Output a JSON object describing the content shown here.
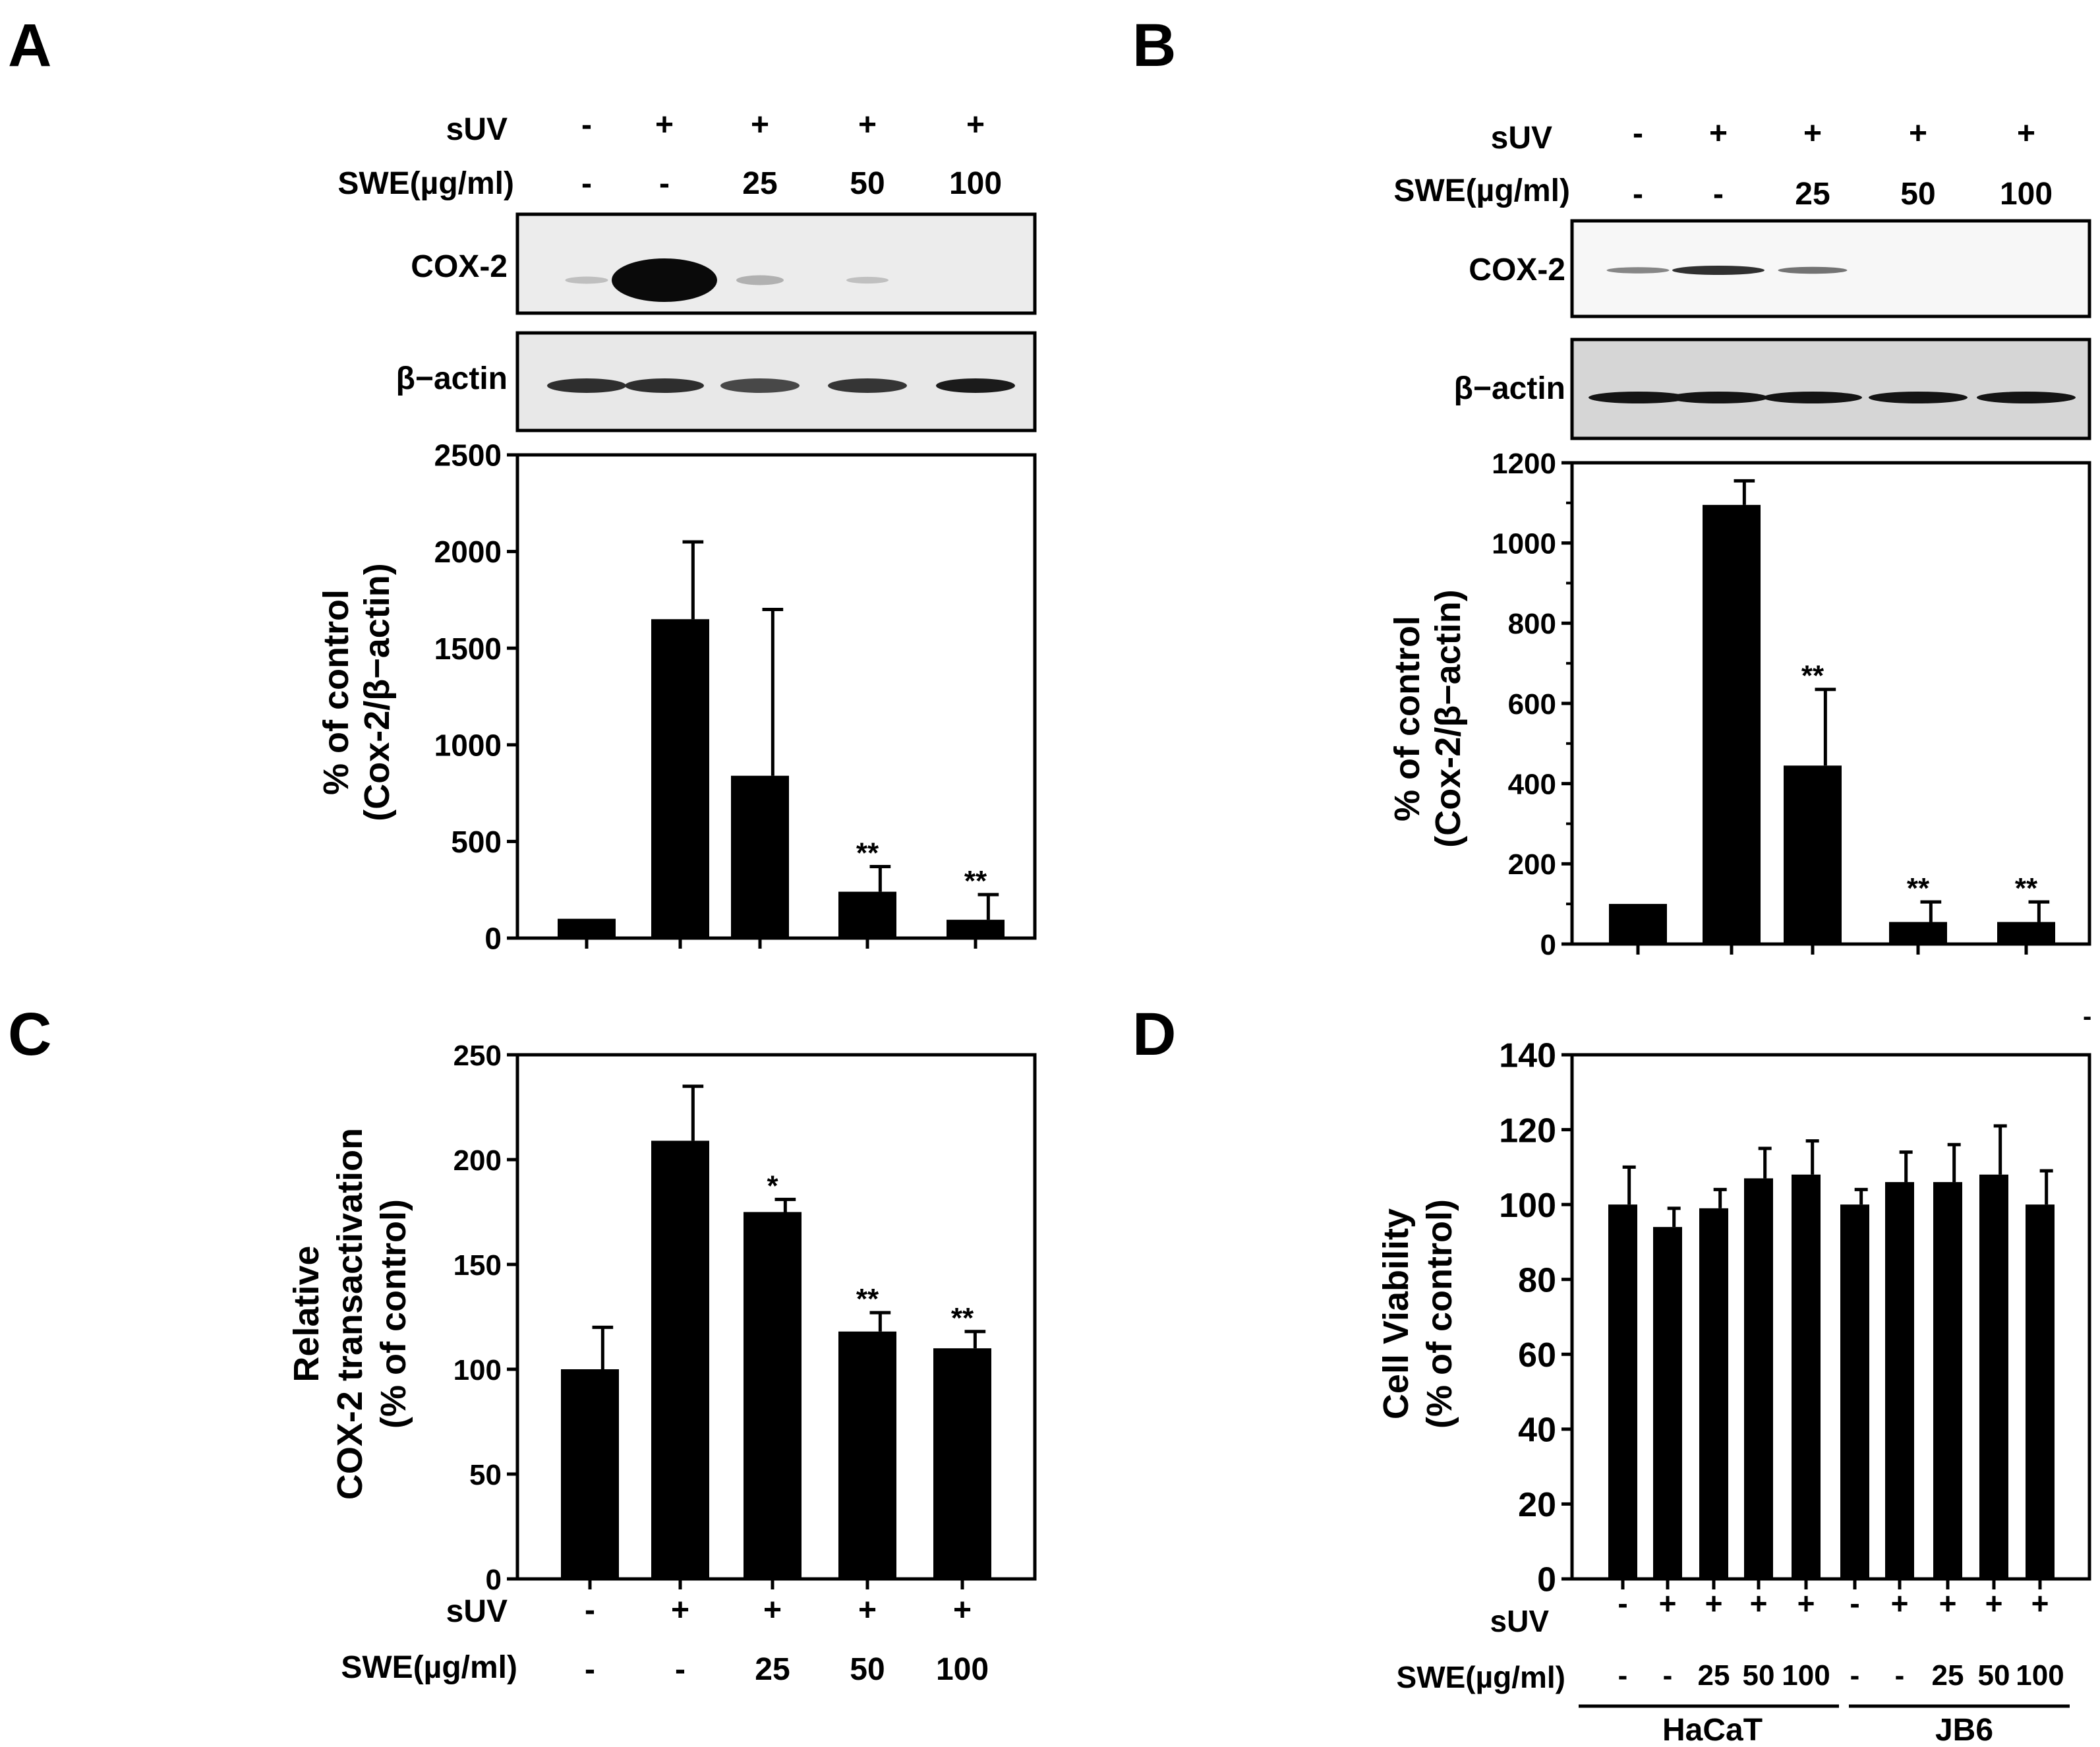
{
  "panels": {
    "A": {
      "letter": "A"
    },
    "B": {
      "letter": "B"
    },
    "C": {
      "letter": "C"
    },
    "D": {
      "letter": "D"
    }
  },
  "stray_mark": "-",
  "blot": {
    "row_labels": {
      "suv": "sUV",
      "swe": "SWE(µg/ml)"
    },
    "band_labels": {
      "cox2": "COX-2",
      "actin": "β−actin"
    },
    "suv_signs": [
      "-",
      "+",
      "+",
      "+",
      "+"
    ],
    "swe_values": [
      "-",
      "-",
      "25",
      "50",
      "100"
    ],
    "A_band_intensity": {
      "cox2": [
        0.05,
        1.0,
        0.12,
        0.04,
        0.0
      ],
      "actin": [
        0.8,
        0.8,
        0.6,
        0.75,
        0.95
      ]
    },
    "B_band_intensity": {
      "cox2": [
        0.35,
        0.8,
        0.45,
        0.0,
        0.0
      ],
      "actin": [
        1.0,
        1.0,
        1.0,
        1.0,
        1.0
      ]
    }
  },
  "chart_data": [
    {
      "panel": "A",
      "type": "bar",
      "categories": [
        "1",
        "2",
        "3",
        "4",
        "5"
      ],
      "values": [
        100,
        1650,
        840,
        240,
        95
      ],
      "errors": [
        0,
        400,
        860,
        130,
        130
      ],
      "annotations": [
        "",
        "",
        "",
        "**",
        "**"
      ],
      "ylim": [
        0,
        2500
      ],
      "yticks": [
        "0",
        "500",
        "1000",
        "1500",
        "2000",
        "2500"
      ],
      "ytick_values": [
        0,
        500,
        1000,
        1500,
        2000,
        2500
      ],
      "minor_ticks": [],
      "ylabel": [
        "% of control",
        "(Cox-2/β−actin)"
      ]
    },
    {
      "panel": "B",
      "type": "bar",
      "categories": [
        "1",
        "2",
        "3",
        "4",
        "5"
      ],
      "values": [
        100,
        1095,
        445,
        55,
        55
      ],
      "errors": [
        0,
        60,
        190,
        50,
        50
      ],
      "annotations": [
        "",
        "",
        "**",
        "**",
        "**"
      ],
      "ylim": [
        0,
        1200
      ],
      "yticks": [
        "0",
        "200",
        "400",
        "600",
        "800",
        "1000",
        "1200"
      ],
      "ytick_values": [
        0,
        200,
        400,
        600,
        800,
        1000,
        1200
      ],
      "minor_ticks": [
        100,
        300,
        500,
        700,
        900,
        1100
      ],
      "ylabel": [
        "% of control",
        "(Cox-2/β−actin)"
      ]
    },
    {
      "panel": "C",
      "type": "bar",
      "categories": [
        "1",
        "2",
        "3",
        "4",
        "5"
      ],
      "values": [
        100,
        209,
        175,
        118,
        110
      ],
      "errors": [
        20,
        26,
        6,
        9,
        8
      ],
      "annotations": [
        "",
        "",
        "*",
        "**",
        "**"
      ],
      "ylim": [
        0,
        250
      ],
      "yticks": [
        "0",
        "50",
        "100",
        "150",
        "200",
        "250"
      ],
      "ytick_values": [
        0,
        50,
        100,
        150,
        200,
        250
      ],
      "minor_ticks": [],
      "ylabel": [
        "Relative",
        "COX-2 transactivation",
        "(% of control)"
      ],
      "x_rows": {
        "suv_label": "sUV",
        "swe_label": "SWE(µg/ml)",
        "suv": [
          "-",
          "+",
          "+",
          "+",
          "+"
        ],
        "swe": [
          "-",
          "-",
          "25",
          "50",
          "100"
        ]
      }
    },
    {
      "panel": "D",
      "type": "bar",
      "categories": [
        "1",
        "2",
        "3",
        "4",
        "5",
        "6",
        "7",
        "8",
        "9",
        "10"
      ],
      "values": [
        100,
        94,
        99,
        107,
        108,
        100,
        106,
        106,
        108,
        100
      ],
      "errors": [
        10,
        5,
        5,
        8,
        9,
        4,
        8,
        10,
        13,
        9
      ],
      "annotations": [
        "",
        "",
        "",
        "",
        "",
        "",
        "",
        "",
        "",
        ""
      ],
      "ylim": [
        0,
        140
      ],
      "yticks": [
        "0",
        "20",
        "40",
        "60",
        "80",
        "100",
        "120",
        "140"
      ],
      "ytick_values": [
        0,
        20,
        40,
        60,
        80,
        100,
        120,
        140
      ],
      "minor_ticks": [],
      "ylabel": [
        "Cell Viability",
        "(% of control)"
      ],
      "x_rows": {
        "suv_label": "sUV",
        "swe_label": "SWE(µg/ml)",
        "suv": [
          "-",
          "+",
          "+",
          "+",
          "+",
          "-",
          "+",
          "+",
          "+",
          "+"
        ],
        "swe": [
          "-",
          "-",
          "25",
          "50",
          "100",
          "-",
          "-",
          "25",
          "50",
          "100"
        ]
      },
      "groups": [
        "HaCaT",
        "JB6"
      ]
    }
  ]
}
